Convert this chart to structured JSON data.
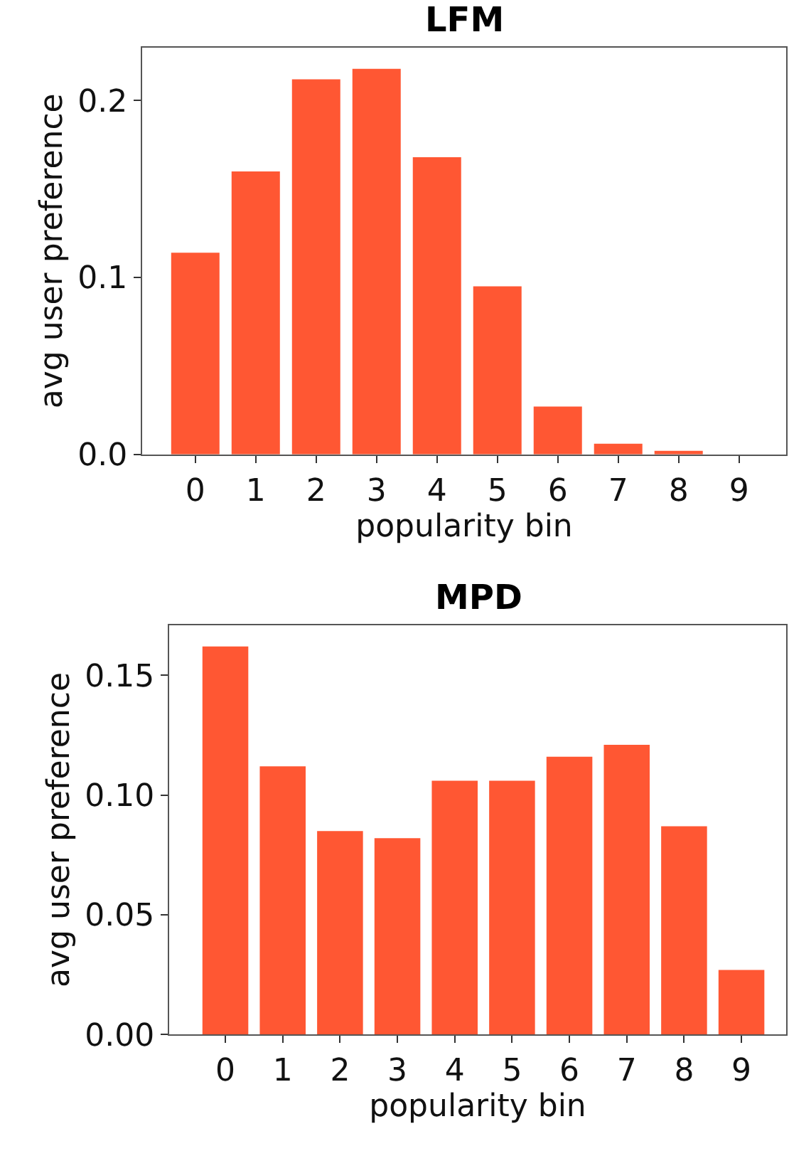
{
  "chart_data": [
    {
      "type": "bar",
      "title": "LFM",
      "xlabel": "popularity bin",
      "ylabel": "avg user preference",
      "categories": [
        "0",
        "1",
        "2",
        "3",
        "4",
        "5",
        "6",
        "7",
        "8",
        "9"
      ],
      "values": [
        0.114,
        0.16,
        0.212,
        0.218,
        0.168,
        0.095,
        0.027,
        0.006,
        0.002,
        0.0
      ],
      "color": "#ff5733",
      "ylim": [
        0,
        0.23
      ],
      "yticks": [
        {
          "value": 0,
          "label": "0.0"
        },
        0.1,
        0.2
      ]
    },
    {
      "type": "bar",
      "title": "MPD",
      "xlabel": "popularity bin",
      "ylabel": "avg user preference",
      "categories": [
        "0",
        "1",
        "2",
        "3",
        "4",
        "5",
        "6",
        "7",
        "8",
        "9"
      ],
      "values": [
        0.162,
        0.112,
        0.085,
        0.082,
        0.106,
        0.106,
        0.116,
        0.121,
        0.087,
        0.027
      ],
      "color": "#ff5733",
      "ylim": [
        0,
        0.171
      ],
      "yticks": [
        {
          "value": 0,
          "label": "0.00"
        },
        {
          "value": 0.05,
          "label": "0.05"
        },
        {
          "value": 0.1,
          "label": "0.10"
        },
        {
          "value": 0.15,
          "label": "0.15"
        }
      ]
    }
  ]
}
